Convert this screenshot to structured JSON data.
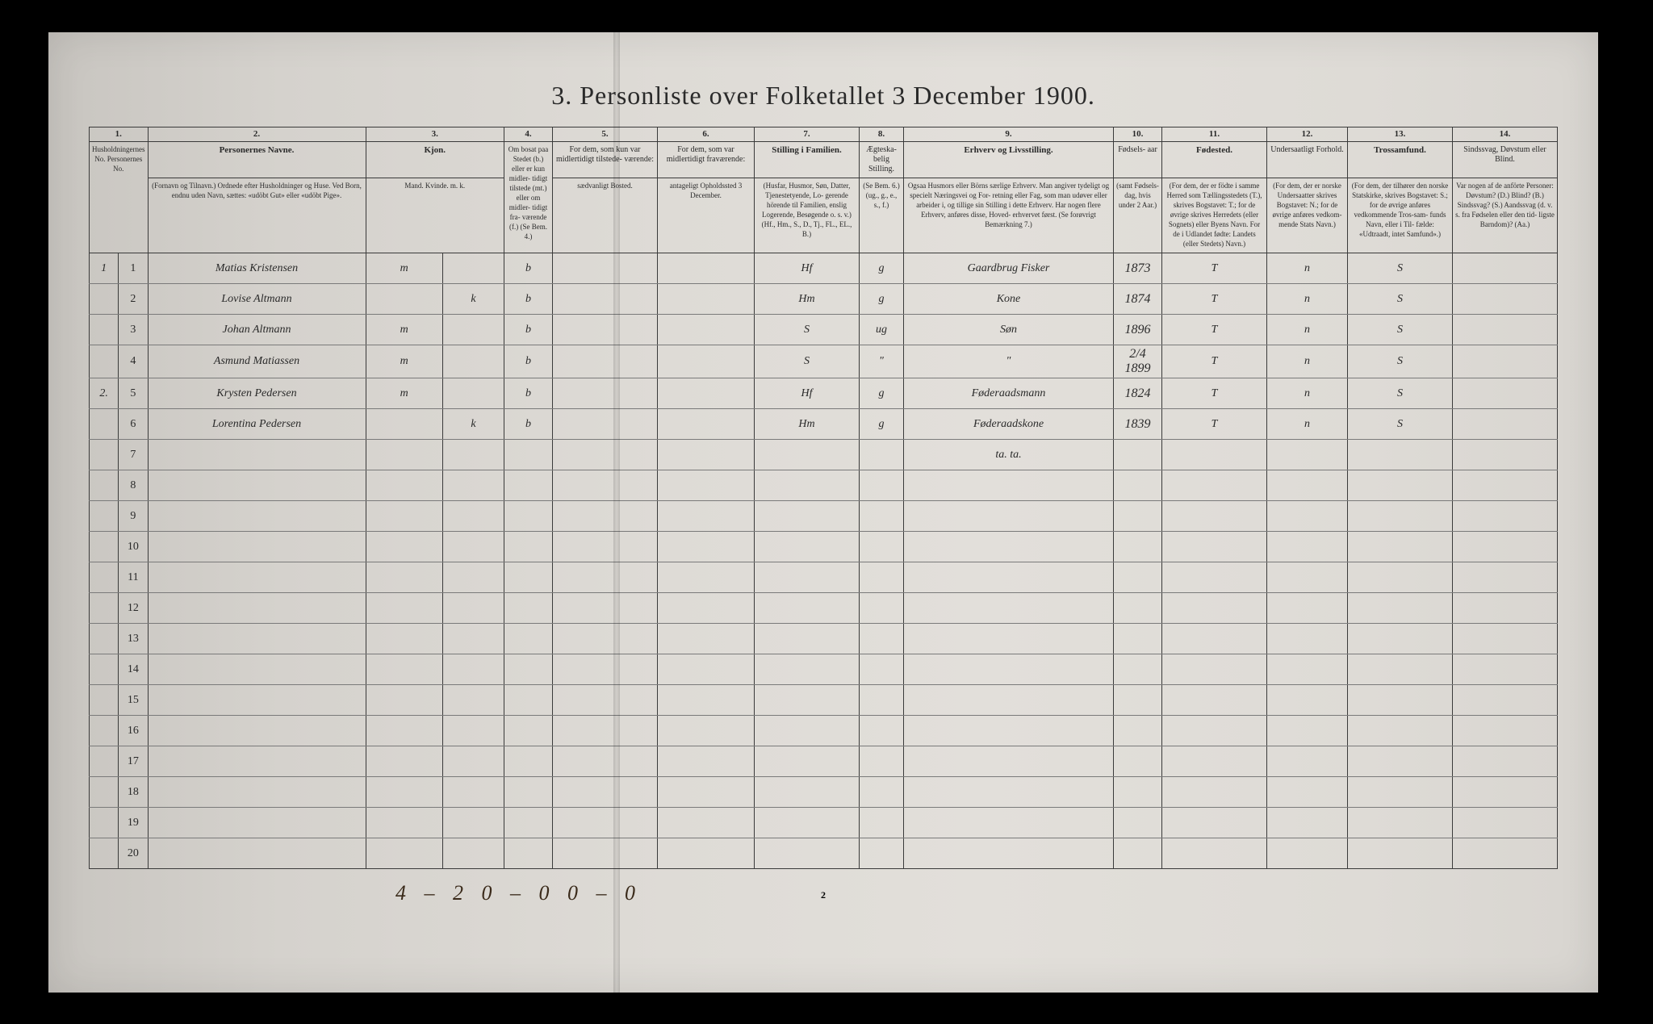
{
  "title": "3. Personliste over Folketallet 3 December 1900.",
  "columns": {
    "c1": {
      "num": "1.",
      "header": "Husholdningernes No.\nPersonernes No."
    },
    "c2": {
      "num": "2.",
      "header": "Personernes Navne.",
      "sub": "(Fornavn og Tilnavn.)\nOrdnede efter Husholdninger og Huse.\nVed Born, endnu uden Navn, sættes: «udöbt Gut»\neller «udöbt Pige»."
    },
    "c3": {
      "num": "3.",
      "header": "Kjon.",
      "sub": "Mand.\nKvinde.\nm. k."
    },
    "c4": {
      "num": "4.",
      "header": "Om bosat\npaa Stedet\n(b.) eller er\nkun midler-\ntidigt tilstede\n(mt.) eller\nom midler-\ntidigt fra-\nværende (f.)\n(Se Bem. 4.)"
    },
    "c5": {
      "num": "5.",
      "header": "For dem, som kun var\nmidlertidigt tilstede-\nværende:",
      "sub": "sædvanligt Bosted."
    },
    "c6": {
      "num": "6.",
      "header": "For dem, som var\nmidlertidigt\nfraværende:",
      "sub": "antageligt Opholdssted\n3 December."
    },
    "c7": {
      "num": "7.",
      "header": "Stilling i Familien.",
      "sub": "(Husfar, Husmor, Søn,\nDatter, Tjenestetyende, Lo-\ngerende hörende til Familien,\nenslig Logerende, Besøgende\no. s. v.)\n(Hf., Hm., S., D., Tj., FL.,\nEL., B.)"
    },
    "c8": {
      "num": "8.",
      "header": "Ægteska-\nbelig\nStilling.",
      "sub": "(Se Bem. 6.)\n(ug., g.,\ne., s., f.)"
    },
    "c9": {
      "num": "9.",
      "header": "Erhverv og Livsstilling.",
      "sub": "Ogsaa Husmors eller Börns særlige Erhverv.\nMan angiver tydeligt og specielt Næringsvei og For-\nretning eller Fag, som man udøver eller arbeider i,\nog tillige sin Stilling i dette Erhverv.\nHar nogen flere Erhverv, anføres disse, Hoved-\nerhvervet først.\n(Se forøvrigt Bemærkning 7.)"
    },
    "c10": {
      "num": "10.",
      "header": "Fødsels-\naar",
      "sub": "(samt\nFødsels-\ndag, hvis\nunder\n2 Aar.)"
    },
    "c11": {
      "num": "11.",
      "header": "Fødested.",
      "sub": "(For dem, der er födte\ni samme Herred som\nTællingsstedets (T.),\nskrives Bogstavet: T.;\nfor de øvrige skrives\nHerredets (eller Sognets)\neller Byens Navn.\nFor de i Udlandet fødte:\nLandets (eller Stedets)\nNavn.)"
    },
    "c12": {
      "num": "12.",
      "header": "Undersaatligt\nForhold.",
      "sub": "(For dem, der er\nnorske Undersaatter\nskrives Bogstavet:\nN.; for de øvrige\nanføres vedkom-\nmende Stats Navn.)"
    },
    "c13": {
      "num": "13.",
      "header": "Trossamfund.",
      "sub": "(For dem, der tilhører\nden norske Statskirke,\nskrives Bogstavet: S.;\nfor de øvrige anføres\nvedkommende Tros-sam-\nfunds Navn, eller i Til-\nfælde: «Udtraadt, intet\nSamfund».)"
    },
    "c14": {
      "num": "14.",
      "header": "Sindssvag, Døvstum\neller Blind.",
      "sub": "Var nogen af de anförte\nPersoner:\nDøvstum? (D.)\nBlind? (B.)\nSindssvag? (S.)\nAandssvag (d. v. s. fra\nFødselen eller den tid-\nligste Barndom)? (Aa.)"
    }
  },
  "rows": [
    {
      "hh": "1",
      "pn": "1",
      "name": "Matias Kristensen",
      "sex": "m",
      "res": "b",
      "fam": "Hf",
      "mar": "g",
      "occ": "Gaardbrug Fisker",
      "born": "1873",
      "place": "T",
      "nat": "n",
      "rel": "S"
    },
    {
      "hh": "",
      "pn": "2",
      "name": "Lovise Altmann",
      "sex": "k",
      "res": "b",
      "fam": "Hm",
      "mar": "g",
      "occ": "Kone",
      "born": "1874",
      "place": "T",
      "nat": "n",
      "rel": "S"
    },
    {
      "hh": "",
      "pn": "3",
      "name": "Johan Altmann",
      "sex": "m",
      "res": "b",
      "fam": "S",
      "mar": "ug",
      "occ": "Søn",
      "born": "1896",
      "place": "T",
      "nat": "n",
      "rel": "S"
    },
    {
      "hh": "",
      "pn": "4",
      "name": "Asmund Matiassen",
      "sex": "m",
      "res": "b",
      "fam": "S",
      "mar": "\"",
      "occ": "\"",
      "born": "2/4 1899",
      "place": "T",
      "nat": "n",
      "rel": "S"
    },
    {
      "hh": "2.",
      "pn": "5",
      "name": "Krysten Pedersen",
      "sex": "m",
      "res": "b",
      "fam": "Hf",
      "mar": "g",
      "occ": "Føderaadsmann",
      "born": "1824",
      "place": "T",
      "nat": "n",
      "rel": "S"
    },
    {
      "hh": "",
      "pn": "6",
      "name": "Lorentina Pedersen",
      "sex": "k",
      "res": "b",
      "fam": "Hm",
      "mar": "g",
      "occ": "Føderaadskone",
      "born": "1839",
      "place": "T",
      "nat": "n",
      "rel": "S"
    },
    {
      "hh": "",
      "pn": "7",
      "name": "",
      "sex": "",
      "res": "",
      "fam": "",
      "mar": "",
      "occ": "ta.  ta.",
      "born": "",
      "place": "",
      "nat": "",
      "rel": ""
    }
  ],
  "empty_rows": [
    "8",
    "9",
    "10",
    "11",
    "12",
    "13",
    "14",
    "15",
    "16",
    "17",
    "18",
    "19",
    "20"
  ],
  "bottom_note": "4 – 2   0 – 0   0 – 0",
  "page_number": "2",
  "col_widths": {
    "c1a": "30",
    "c1b": "30",
    "c2": "270",
    "c3a": "22",
    "c3b": "22",
    "c4": "60",
    "c5": "130",
    "c6": "120",
    "c7": "130",
    "c8": "55",
    "c9": "260",
    "c10": "60",
    "c11": "130",
    "c12": "100",
    "c13": "130",
    "c14": "130"
  }
}
